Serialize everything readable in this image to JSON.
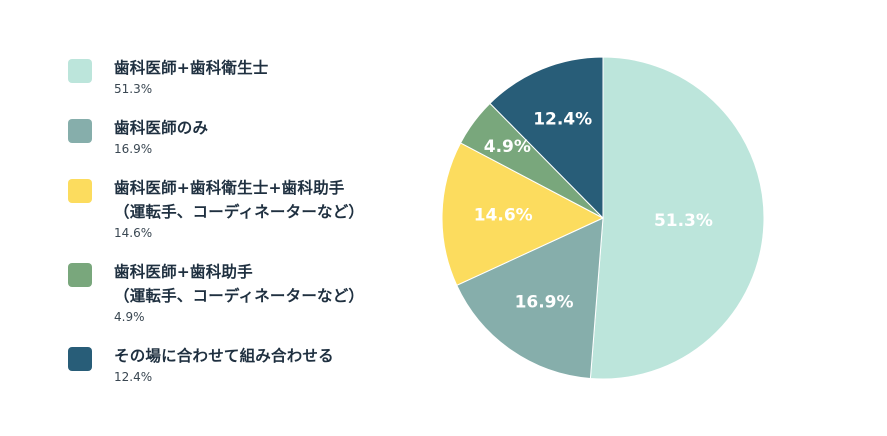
{
  "chart_data": {
    "type": "pie",
    "title": "",
    "legend_position": "left",
    "slices": [
      {
        "label": "歯科医師+歯科衛生士",
        "value": 51.3,
        "display": "51.3%",
        "color": "#bce5db"
      },
      {
        "label": "歯科医師のみ",
        "value": 16.9,
        "display": "16.9%",
        "color": "#86aeab"
      },
      {
        "label": "歯科医師+歯科衛生士+歯科助手\n（運転手、コーディネーターなど）",
        "value": 14.6,
        "display": "14.6%",
        "color": "#fcdc5e"
      },
      {
        "label": "歯科医師+歯科助手\n（運転手、コーディネーターなど）",
        "value": 4.9,
        "display": "4.9%",
        "color": "#79a77c"
      },
      {
        "label": "その場に合わせて組み合わせる",
        "value": 12.4,
        "display": "12.4%",
        "color": "#285d78"
      }
    ]
  }
}
